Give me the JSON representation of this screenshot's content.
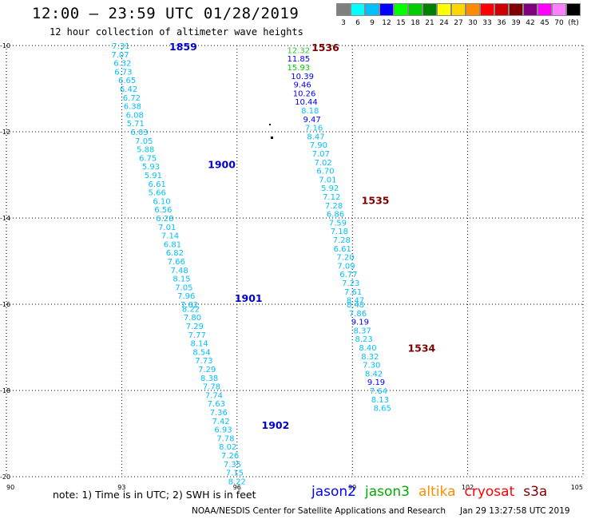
{
  "header": {
    "title": "12:00 — 23:59 UTC 01/28/2019",
    "subtitle": "12 hour collection of altimeter wave heights"
  },
  "scale": {
    "unit": "(ft)",
    "items": [
      {
        "label": "3",
        "color": "#7f7f7f"
      },
      {
        "label": "6",
        "color": "#00ffff"
      },
      {
        "label": "9",
        "color": "#00bfff"
      },
      {
        "label": "12",
        "color": "#0000ff"
      },
      {
        "label": "15",
        "color": "#00ff00"
      },
      {
        "label": "18",
        "color": "#00cc00"
      },
      {
        "label": "21",
        "color": "#008000"
      },
      {
        "label": "24",
        "color": "#ffff00"
      },
      {
        "label": "27",
        "color": "#ffd700"
      },
      {
        "label": "30",
        "color": "#ff8c00"
      },
      {
        "label": "33",
        "color": "#ff0000"
      },
      {
        "label": "36",
        "color": "#cc0000"
      },
      {
        "label": "39",
        "color": "#800000"
      },
      {
        "label": "42",
        "color": "#800080"
      },
      {
        "label": "45",
        "color": "#ff00ff"
      },
      {
        "label": "70",
        "color": "#ff80ff"
      },
      {
        "label": "",
        "color": "#000000"
      }
    ]
  },
  "chart_data": {
    "type": "scatter",
    "xlim": [
      90,
      105
    ],
    "ylim": [
      -20,
      -10
    ],
    "x_ticks": [
      "90",
      "93",
      "96",
      "99",
      "102",
      "105"
    ],
    "y_ticks": [
      "-10",
      "-12",
      "-14",
      "-16",
      "-18",
      "-20"
    ],
    "grid": true,
    "series": [
      {
        "name": "jason2",
        "labels": [
          {
            "x": 94.6,
            "y": -10.02,
            "text": "1859"
          },
          {
            "x": 95.6,
            "y": -12.75,
            "text": "1900"
          },
          {
            "x": 96.3,
            "y": -15.85,
            "text": "1901"
          },
          {
            "x": 97.0,
            "y": -18.8,
            "text": "1902"
          }
        ],
        "points": [
          {
            "x": 92.98,
            "y": -10.0,
            "v": "7.31"
          },
          {
            "x": 92.96,
            "y": -10.2,
            "v": "7.07"
          },
          {
            "x": 93.02,
            "y": -10.4,
            "v": "6.32"
          },
          {
            "x": 93.04,
            "y": -10.6,
            "v": "6.73"
          },
          {
            "x": 93.14,
            "y": -10.8,
            "v": "6.65"
          },
          {
            "x": 93.18,
            "y": -11.0,
            "v": "6.42"
          },
          {
            "x": 93.26,
            "y": -11.2,
            "v": "6.72"
          },
          {
            "x": 93.28,
            "y": -11.4,
            "v": "6.38"
          },
          {
            "x": 93.34,
            "y": -11.6,
            "v": "6.08"
          },
          {
            "x": 93.36,
            "y": -11.8,
            "v": "5.71"
          },
          {
            "x": 93.46,
            "y": -12.0,
            "v": "6.03"
          },
          {
            "x": 93.58,
            "y": -12.2,
            "v": "7.05"
          },
          {
            "x": 93.62,
            "y": -12.4,
            "v": "5.88"
          },
          {
            "x": 93.68,
            "y": -12.6,
            "v": "6.75"
          },
          {
            "x": 93.76,
            "y": -12.8,
            "v": "5.93"
          },
          {
            "x": 93.82,
            "y": -13.0,
            "v": "5.91"
          },
          {
            "x": 93.92,
            "y": -13.2,
            "v": "6.61"
          },
          {
            "x": 93.92,
            "y": -13.4,
            "v": "5.66"
          },
          {
            "x": 94.04,
            "y": -13.6,
            "v": "6.10"
          },
          {
            "x": 94.08,
            "y": -13.8,
            "v": "6.56"
          },
          {
            "x": 94.12,
            "y": -14.0,
            "v": "6.28"
          },
          {
            "x": 94.18,
            "y": -14.2,
            "v": "7.01"
          },
          {
            "x": 94.26,
            "y": -14.4,
            "v": "7.14"
          },
          {
            "x": 94.32,
            "y": -14.6,
            "v": "6.81"
          },
          {
            "x": 94.38,
            "y": -14.8,
            "v": "6.82"
          },
          {
            "x": 94.42,
            "y": -15.0,
            "v": "7.66"
          },
          {
            "x": 94.5,
            "y": -15.2,
            "v": "7.48"
          },
          {
            "x": 94.56,
            "y": -15.4,
            "v": "8.15"
          },
          {
            "x": 94.62,
            "y": -15.6,
            "v": "7.05"
          },
          {
            "x": 94.68,
            "y": -15.8,
            "v": "7.96"
          },
          {
            "x": 94.76,
            "y": -16.0,
            "v": "7.82"
          },
          {
            "x": 94.8,
            "y": -16.1,
            "v": "8.22"
          },
          {
            "x": 94.84,
            "y": -16.3,
            "v": "7.80"
          },
          {
            "x": 94.9,
            "y": -16.5,
            "v": "7.29"
          },
          {
            "x": 94.96,
            "y": -16.7,
            "v": "7.77"
          },
          {
            "x": 95.02,
            "y": -16.9,
            "v": "8.14"
          },
          {
            "x": 95.08,
            "y": -17.1,
            "v": "8.54"
          },
          {
            "x": 95.14,
            "y": -17.3,
            "v": "7.73"
          },
          {
            "x": 95.22,
            "y": -17.5,
            "v": "7.29"
          },
          {
            "x": 95.28,
            "y": -17.7,
            "v": "8.38"
          },
          {
            "x": 95.34,
            "y": -17.9,
            "v": "7.78"
          },
          {
            "x": 95.4,
            "y": -18.1,
            "v": "7.74"
          },
          {
            "x": 95.46,
            "y": -18.3,
            "v": "7.63"
          },
          {
            "x": 95.52,
            "y": -18.5,
            "v": "7.36"
          },
          {
            "x": 95.58,
            "y": -18.7,
            "v": "7.42"
          },
          {
            "x": 95.64,
            "y": -18.9,
            "v": "6.93"
          },
          {
            "x": 95.7,
            "y": -19.1,
            "v": "7.78"
          },
          {
            "x": 95.76,
            "y": -19.3,
            "v": "8.02"
          },
          {
            "x": 95.82,
            "y": -19.5,
            "v": "7.26"
          },
          {
            "x": 95.88,
            "y": -19.7,
            "v": "7.35"
          },
          {
            "x": 95.94,
            "y": -19.9,
            "v": "7.15"
          },
          {
            "x": 96.0,
            "y": -20.1,
            "v": "8.22"
          }
        ]
      },
      {
        "name": "cryosat",
        "labels": [
          {
            "x": 98.3,
            "y": -10.04,
            "text": "1536"
          },
          {
            "x": 99.6,
            "y": -13.58,
            "text": "1535"
          },
          {
            "x": 100.8,
            "y": -17.01,
            "text": "1534"
          }
        ],
        "points": [
          {
            "x": 97.6,
            "y": -10.1,
            "v": "12.32"
          },
          {
            "x": 97.6,
            "y": -10.3,
            "v": "11.85"
          },
          {
            "x": 97.6,
            "y": -10.5,
            "v": "15.93"
          },
          {
            "x": 97.7,
            "y": -10.7,
            "v": "10.39"
          },
          {
            "x": 97.7,
            "y": -10.9,
            "v": "9.46"
          },
          {
            "x": 97.75,
            "y": -11.1,
            "v": "10.26"
          },
          {
            "x": 97.8,
            "y": -11.3,
            "v": "10.44"
          },
          {
            "x": 97.9,
            "y": -11.5,
            "v": "8.18"
          },
          {
            "x": 97.95,
            "y": -11.7,
            "v": "9.47"
          },
          {
            "x": 98.0,
            "y": -11.9,
            "v": "7.16"
          },
          {
            "x": 98.05,
            "y": -12.1,
            "v": "8.47"
          },
          {
            "x": 98.12,
            "y": -12.3,
            "v": "7.90"
          },
          {
            "x": 98.18,
            "y": -12.5,
            "v": "7.07"
          },
          {
            "x": 98.24,
            "y": -12.7,
            "v": "7.02"
          },
          {
            "x": 98.3,
            "y": -12.9,
            "v": "6.70"
          },
          {
            "x": 98.36,
            "y": -13.1,
            "v": "7.01"
          },
          {
            "x": 98.42,
            "y": -13.3,
            "v": "5.92"
          },
          {
            "x": 98.46,
            "y": -13.5,
            "v": "7.12"
          },
          {
            "x": 98.52,
            "y": -13.7,
            "v": "7.28"
          },
          {
            "x": 98.56,
            "y": -13.9,
            "v": "6.86"
          },
          {
            "x": 98.62,
            "y": -14.1,
            "v": "7.59"
          },
          {
            "x": 98.66,
            "y": -14.3,
            "v": "7.18"
          },
          {
            "x": 98.72,
            "y": -14.5,
            "v": "7.28"
          },
          {
            "x": 98.74,
            "y": -14.7,
            "v": "6.61"
          },
          {
            "x": 98.82,
            "y": -14.9,
            "v": "7.20"
          },
          {
            "x": 98.84,
            "y": -15.1,
            "v": "7.09"
          },
          {
            "x": 98.9,
            "y": -15.3,
            "v": "6.77"
          },
          {
            "x": 98.96,
            "y": -15.5,
            "v": "7.23"
          },
          {
            "x": 99.02,
            "y": -15.7,
            "v": "7.61"
          },
          {
            "x": 99.08,
            "y": -15.9,
            "v": "8.47"
          },
          {
            "x": 99.08,
            "y": -16.0,
            "v": "8.48"
          },
          {
            "x": 99.14,
            "y": -16.2,
            "v": "7.86"
          },
          {
            "x": 99.2,
            "y": -16.4,
            "v": "9.19"
          },
          {
            "x": 99.26,
            "y": -16.6,
            "v": "8.37"
          },
          {
            "x": 99.3,
            "y": -16.8,
            "v": "8.23"
          },
          {
            "x": 99.4,
            "y": -17.0,
            "v": "8.40"
          },
          {
            "x": 99.46,
            "y": -17.2,
            "v": "8.32"
          },
          {
            "x": 99.5,
            "y": -17.4,
            "v": "7.30"
          },
          {
            "x": 99.56,
            "y": -17.6,
            "v": "8.42"
          },
          {
            "x": 99.62,
            "y": -17.8,
            "v": "9.19"
          },
          {
            "x": 99.68,
            "y": -18.0,
            "v": "7.64"
          },
          {
            "x": 99.72,
            "y": -18.2,
            "v": "8.13"
          },
          {
            "x": 99.78,
            "y": -18.4,
            "v": "8.65"
          }
        ]
      }
    ]
  },
  "footer": {
    "note": "note: 1) Time is in UTC; 2) SWH is in feet",
    "legend": [
      {
        "name": "jason2",
        "color": "#0000ff"
      },
      {
        "name": "jason3",
        "color": "#00aa00"
      },
      {
        "name": "altika",
        "color": "#ff8c00"
      },
      {
        "name": "cryosat",
        "color": "#ff0000"
      },
      {
        "name": "s3a",
        "color": "#800000"
      }
    ],
    "credit": "NOAA/NESDIS Center for Satellite Applications and Research",
    "timestamp": "Jan 29 13:27:58 UTC 2019"
  }
}
